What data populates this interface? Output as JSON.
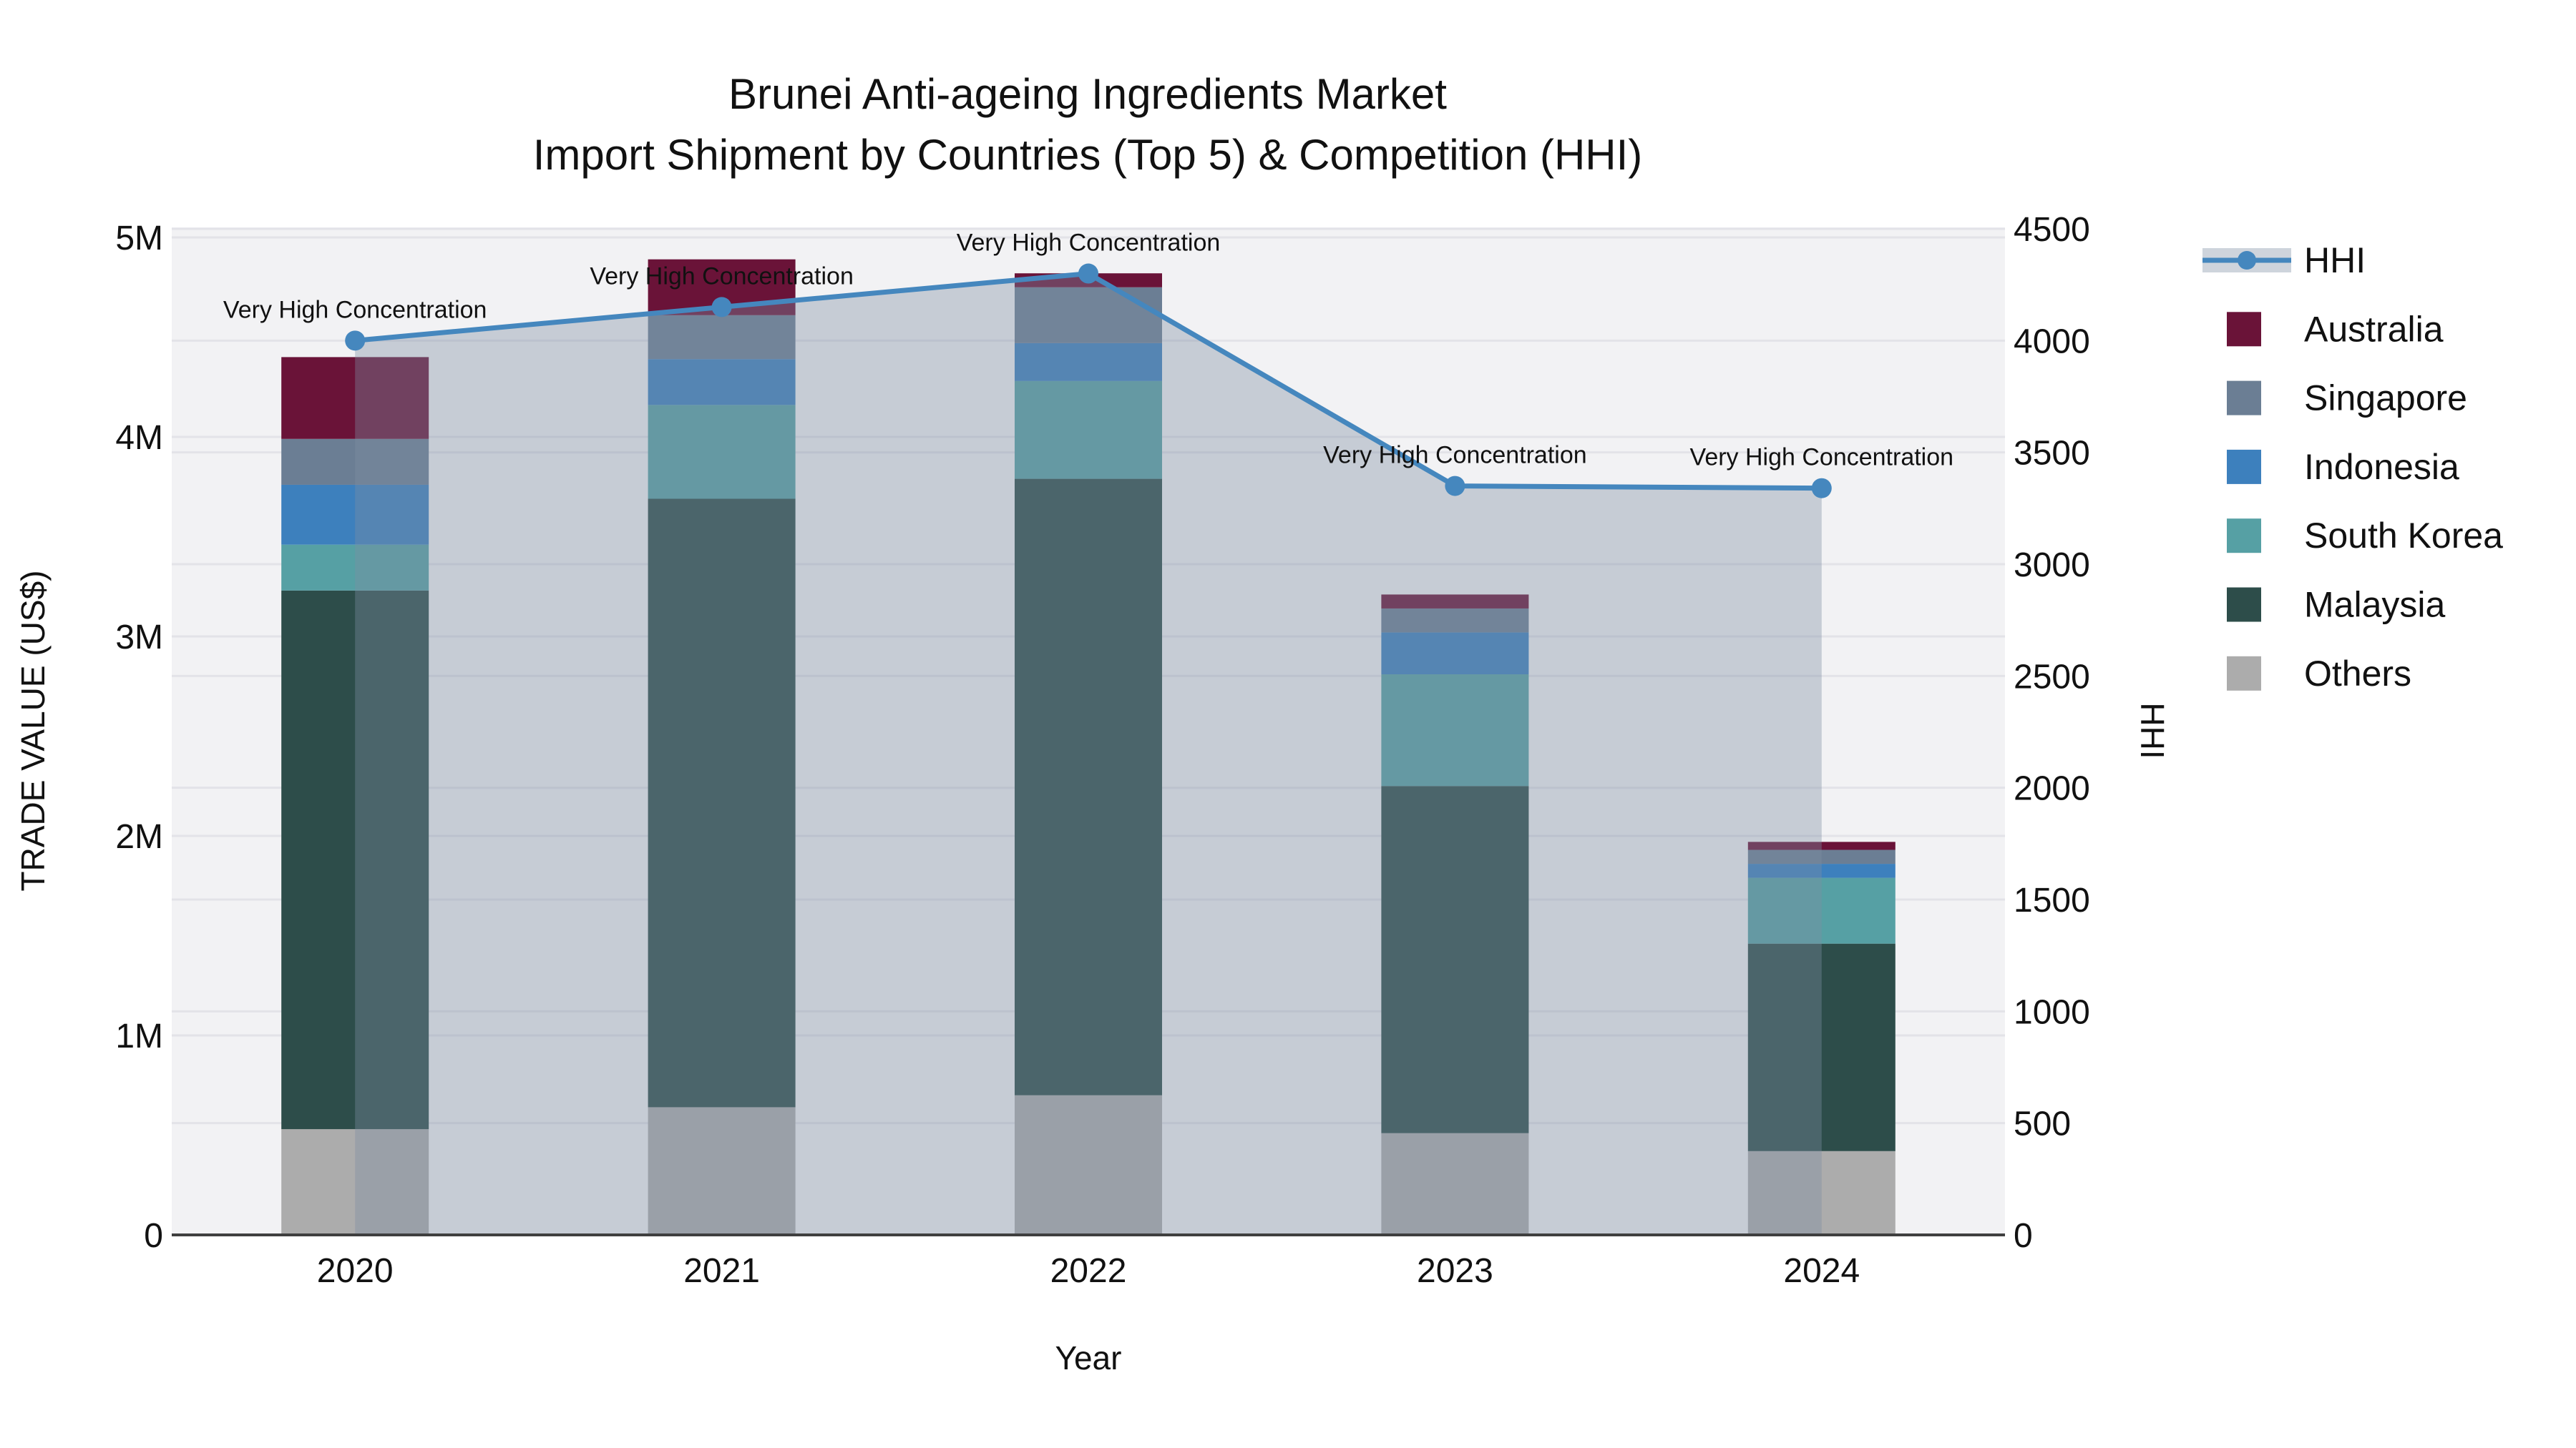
{
  "title": {
    "line1": "Brunei Anti-ageing Ingredients Market",
    "line2": "Import Shipment by Countries (Top 5) & Competition (HHI)"
  },
  "colors": {
    "hhi_line": "#4587be",
    "hhi_fill": "rgba(127,143,164,0.38)",
    "australia": "#6a1338",
    "singapore": "#6b7e94",
    "indonesia": "#3d80bd",
    "south_korea": "#56a0a4",
    "malaysia": "#2d4d4a",
    "others": "#acacac",
    "plot_bg": "#f2f2f4",
    "gridline": "#e3e3e8",
    "axis_line": "#3f3f3f"
  },
  "legend": {
    "items": [
      {
        "label": "HHI",
        "type": "line",
        "color": "#4587be"
      },
      {
        "label": "Australia",
        "type": "swatch",
        "color": "#6a1338"
      },
      {
        "label": "Singapore",
        "type": "swatch",
        "color": "#6b7e94"
      },
      {
        "label": "Indonesia",
        "type": "swatch",
        "color": "#3d80bd"
      },
      {
        "label": "South Korea",
        "type": "swatch",
        "color": "#56a0a4"
      },
      {
        "label": "Malaysia",
        "type": "swatch",
        "color": "#2d4d4a"
      },
      {
        "label": "Others",
        "type": "swatch",
        "color": "#acacac"
      }
    ]
  },
  "chart_data": {
    "type": "combo-stacked-bar-line",
    "title": "Brunei Anti-ageing Ingredients Market — Import Shipment by Countries (Top 5) & Competition (HHI)",
    "xlabel": "Year",
    "ylabel_left": "TRADE VALUE (US$)",
    "ylabel_right": "HHI",
    "categories": [
      "2020",
      "2021",
      "2022",
      "2023",
      "2024"
    ],
    "bar_unit": "millions US$",
    "series": [
      {
        "name": "Others",
        "color": "#acacac",
        "values": [
          0.53,
          0.64,
          0.7,
          0.51,
          0.42
        ]
      },
      {
        "name": "Malaysia",
        "color": "#2d4d4a",
        "values": [
          2.7,
          3.05,
          3.09,
          1.74,
          1.04
        ]
      },
      {
        "name": "South Korea",
        "color": "#56a0a4",
        "values": [
          0.23,
          0.47,
          0.49,
          0.56,
          0.33
        ]
      },
      {
        "name": "Indonesia",
        "color": "#3d80bd",
        "values": [
          0.3,
          0.23,
          0.19,
          0.21,
          0.07
        ]
      },
      {
        "name": "Singapore",
        "color": "#6b7e94",
        "values": [
          0.23,
          0.22,
          0.28,
          0.12,
          0.07
        ]
      },
      {
        "name": "Australia",
        "color": "#6a1338",
        "values": [
          0.41,
          0.28,
          0.07,
          0.07,
          0.04
        ]
      }
    ],
    "line_series": {
      "name": "HHI",
      "color": "#4587be",
      "values": [
        4000,
        4150,
        4300,
        3350,
        3340
      ],
      "annotations": [
        "Very High Concentration",
        "Very High Concentration",
        "Very High Concentration",
        "Very High Concentration",
        "Very High Concentration"
      ]
    },
    "ylim_left": [
      0,
      5
    ],
    "ylim_right": [
      0,
      4500
    ],
    "yticks_left": [
      {
        "v": 0,
        "label": "0"
      },
      {
        "v": 1,
        "label": "1M"
      },
      {
        "v": 2,
        "label": "2M"
      },
      {
        "v": 3,
        "label": "3M"
      },
      {
        "v": 4,
        "label": "4M"
      },
      {
        "v": 5,
        "label": "5M"
      }
    ],
    "yticks_right": [
      0,
      500,
      1000,
      1500,
      2000,
      2500,
      3000,
      3500,
      4000,
      4500
    ],
    "grid": true,
    "legend_position": "right"
  }
}
